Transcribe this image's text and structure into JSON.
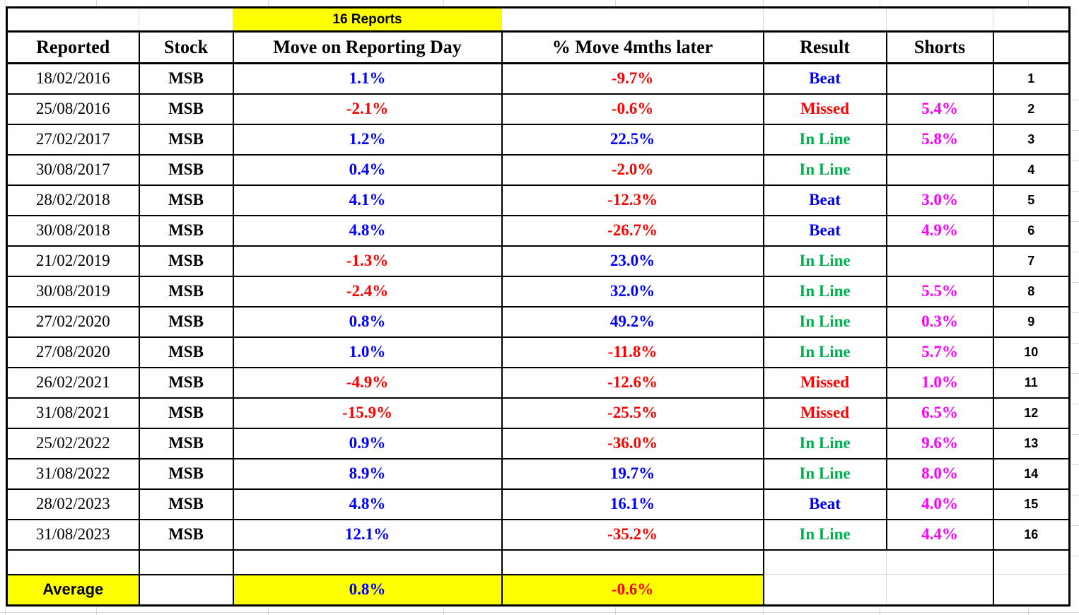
{
  "sheet": {
    "banner": {
      "label": "16 Reports"
    },
    "columns": {
      "reported": "Reported",
      "stock": "Stock",
      "move_day": "Move on Reporting Day",
      "move_4m": "% Move 4mths later",
      "result": "Result",
      "shorts": "Shorts"
    },
    "rows": [
      {
        "reported": "18/02/2016",
        "stock": "MSB",
        "move_day": "1.1%",
        "move_4m": "-9.7%",
        "result": "Beat",
        "shorts": "",
        "num": "1"
      },
      {
        "reported": "25/08/2016",
        "stock": "MSB",
        "move_day": "-2.1%",
        "move_4m": "-0.6%",
        "result": "Missed",
        "shorts": "5.4%",
        "num": "2"
      },
      {
        "reported": "27/02/2017",
        "stock": "MSB",
        "move_day": "1.2%",
        "move_4m": "22.5%",
        "result": "In Line",
        "shorts": "5.8%",
        "num": "3"
      },
      {
        "reported": "30/08/2017",
        "stock": "MSB",
        "move_day": "0.4%",
        "move_4m": "-2.0%",
        "result": "In Line",
        "shorts": "",
        "num": "4"
      },
      {
        "reported": "28/02/2018",
        "stock": "MSB",
        "move_day": "4.1%",
        "move_4m": "-12.3%",
        "result": "Beat",
        "shorts": "3.0%",
        "num": "5"
      },
      {
        "reported": "30/08/2018",
        "stock": "MSB",
        "move_day": "4.8%",
        "move_4m": "-26.7%",
        "result": "Beat",
        "shorts": "4.9%",
        "num": "6"
      },
      {
        "reported": "21/02/2019",
        "stock": "MSB",
        "move_day": "-1.3%",
        "move_4m": "23.0%",
        "result": "In Line",
        "shorts": "",
        "num": "7"
      },
      {
        "reported": "30/08/2019",
        "stock": "MSB",
        "move_day": "-2.4%",
        "move_4m": "32.0%",
        "result": "In Line",
        "shorts": "5.5%",
        "num": "8"
      },
      {
        "reported": "27/02/2020",
        "stock": "MSB",
        "move_day": "0.8%",
        "move_4m": "49.2%",
        "result": "In Line",
        "shorts": "0.3%",
        "num": "9"
      },
      {
        "reported": "27/08/2020",
        "stock": "MSB",
        "move_day": "1.0%",
        "move_4m": "-11.8%",
        "result": "In Line",
        "shorts": "5.7%",
        "num": "10"
      },
      {
        "reported": "26/02/2021",
        "stock": "MSB",
        "move_day": "-4.9%",
        "move_4m": "-12.6%",
        "result": "Missed",
        "shorts": "1.0%",
        "num": "11"
      },
      {
        "reported": "31/08/2021",
        "stock": "MSB",
        "move_day": "-15.9%",
        "move_4m": "-25.5%",
        "result": "Missed",
        "shorts": "6.5%",
        "num": "12"
      },
      {
        "reported": "25/02/2022",
        "stock": "MSB",
        "move_day": "0.9%",
        "move_4m": "-36.0%",
        "result": "In Line",
        "shorts": "9.6%",
        "num": "13"
      },
      {
        "reported": "31/08/2022",
        "stock": "MSB",
        "move_day": "8.9%",
        "move_4m": "19.7%",
        "result": "In Line",
        "shorts": "8.0%",
        "num": "14"
      },
      {
        "reported": "28/02/2023",
        "stock": "MSB",
        "move_day": "4.8%",
        "move_4m": "16.1%",
        "result": "Beat",
        "shorts": "4.0%",
        "num": "15"
      },
      {
        "reported": "31/08/2023",
        "stock": "MSB",
        "move_day": "12.1%",
        "move_4m": "-35.2%",
        "result": "In Line",
        "shorts": "4.4%",
        "num": "16"
      }
    ],
    "average": {
      "label": "Average",
      "move_day": "0.8%",
      "move_4m": "-0.6%"
    },
    "colors": {
      "positive": "#0000FF",
      "negative": "#FF0000",
      "beat": "#0000FF",
      "missed": "#FF0000",
      "in_line": "#00B050",
      "shorts": "#FF00FF",
      "shorts_header": "#990099",
      "highlight": "#FFFF00"
    }
  }
}
